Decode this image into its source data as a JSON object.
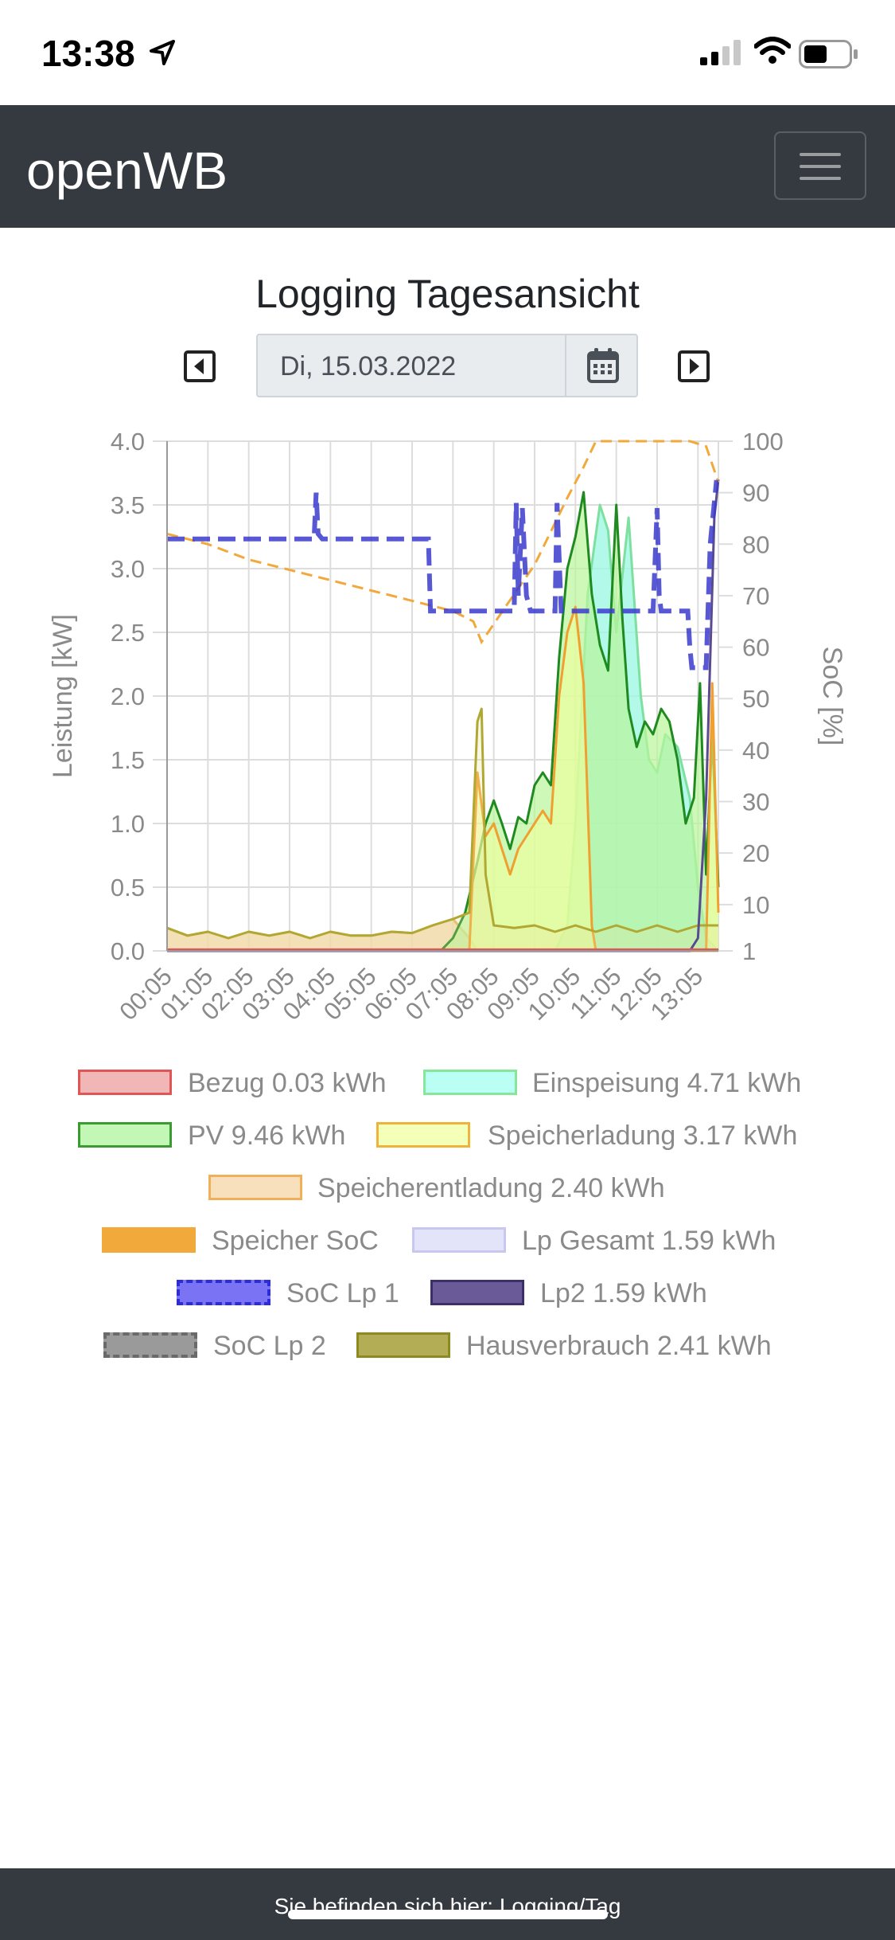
{
  "status_bar": {
    "time": "13:38"
  },
  "navbar": {
    "brand": "openWB"
  },
  "page": {
    "title": "Logging Tagesansicht",
    "date": "Di, 15.03.2022"
  },
  "chart_data": {
    "type": "area",
    "title": "",
    "ylabel": "Leistung [kW]",
    "y2label": "SoC [%]",
    "ylim": [
      0,
      4
    ],
    "y2lim": [
      1,
      100
    ],
    "yticks": [
      "0.0",
      "0.5",
      "1.0",
      "1.5",
      "2.0",
      "2.5",
      "3.0",
      "3.5",
      "4.0"
    ],
    "y2ticks": [
      "1",
      "10",
      "20",
      "30",
      "40",
      "50",
      "60",
      "70",
      "80",
      "90",
      "100"
    ],
    "x": [
      "00:05",
      "01:05",
      "02:05",
      "03:05",
      "04:05",
      "05:05",
      "06:05",
      "07:05",
      "08:05",
      "09:05",
      "10:05",
      "11:05",
      "12:05",
      "13:05"
    ],
    "series": [
      {
        "name": "Bezug 0.03 kWh",
        "axis": "left",
        "x": [
          0,
          13.5
        ],
        "values": [
          0.01,
          0.01
        ]
      },
      {
        "name": "Einspeisung 4.71 kWh",
        "axis": "left",
        "x": [
          0,
          7.4,
          7.6,
          8.0,
          8.5,
          9.0,
          9.5,
          9.8,
          10.0,
          10.3,
          10.6,
          10.8,
          11.0,
          11.3,
          11.6,
          11.8,
          12.0,
          12.2,
          12.5,
          12.8,
          13.0,
          13.2,
          13.5
        ],
        "values": [
          0,
          0,
          0,
          0,
          0,
          0,
          0,
          0.2,
          1.0,
          2.8,
          3.5,
          3.3,
          2.5,
          3.4,
          2.0,
          1.5,
          1.4,
          1.7,
          1.6,
          1.2,
          0.5,
          0.1,
          0
        ]
      },
      {
        "name": "PV 9.46 kWh",
        "axis": "left",
        "x": [
          0,
          6.7,
          7.0,
          7.3,
          7.6,
          7.8,
          8.0,
          8.2,
          8.4,
          8.6,
          8.8,
          9.0,
          9.2,
          9.4,
          9.6,
          9.8,
          10.0,
          10.2,
          10.4,
          10.6,
          10.8,
          11.0,
          11.15,
          11.3,
          11.5,
          11.7,
          11.9,
          12.1,
          12.3,
          12.5,
          12.7,
          12.9,
          13.05,
          13.2,
          13.35,
          13.5
        ],
        "values": [
          0,
          0,
          0.1,
          0.3,
          0.7,
          1.0,
          1.18,
          1.0,
          0.8,
          1.05,
          1.0,
          1.3,
          1.4,
          1.3,
          2.3,
          3.0,
          3.25,
          3.6,
          2.8,
          2.4,
          2.2,
          3.5,
          2.6,
          1.9,
          1.6,
          1.8,
          1.7,
          1.9,
          1.8,
          1.5,
          1.0,
          1.2,
          2.1,
          0.6,
          1.7,
          0.5
        ]
      },
      {
        "name": "Speicherladung 3.17 kWh",
        "axis": "left",
        "x": [
          0,
          7.4,
          7.6,
          7.8,
          8.0,
          8.2,
          8.4,
          8.6,
          8.8,
          9.0,
          9.2,
          9.4,
          9.6,
          9.8,
          10.0,
          10.2,
          10.4,
          10.5,
          13.2,
          13.35,
          13.5
        ],
        "values": [
          0,
          0,
          1.4,
          0.9,
          1.0,
          0.8,
          0.6,
          0.8,
          0.9,
          1.0,
          1.1,
          1.0,
          2.0,
          2.5,
          2.7,
          2.1,
          0.2,
          0,
          0,
          2.1,
          0.3
        ]
      },
      {
        "name": "Speicherentladung 2.40 kWh",
        "axis": "left",
        "x": [
          0,
          0.5,
          1.0,
          1.5,
          2.0,
          2.5,
          3.0,
          3.5,
          4.0,
          4.5,
          5.0,
          5.5,
          6.0,
          6.5,
          7.0,
          7.4,
          7.6,
          13.3,
          13.5
        ],
        "values": [
          0.18,
          0.12,
          0.15,
          0.1,
          0.15,
          0.12,
          0.15,
          0.1,
          0.15,
          0.12,
          0.12,
          0.15,
          0.14,
          0.2,
          0.25,
          0.1,
          0,
          0,
          0
        ]
      },
      {
        "name": "Speicher SoC",
        "axis": "right",
        "x": [
          0,
          1,
          2,
          3,
          4,
          5,
          6,
          6.5,
          7,
          7.5,
          7.7,
          8.3,
          9.0,
          9.8,
          10.2,
          10.5,
          11,
          12,
          12.8,
          13.2,
          13.5
        ],
        "values": [
          82,
          80,
          77,
          75,
          73,
          71,
          69,
          68,
          67,
          65,
          61,
          68,
          76,
          89,
          95,
          100,
          100,
          100,
          100,
          99,
          92
        ]
      },
      {
        "name": "Lp Gesamt 1.59 kWh",
        "axis": "left",
        "x": [
          0,
          12.8,
          13.0,
          13.2,
          13.4,
          13.5
        ],
        "values": [
          0,
          0,
          0.1,
          1.2,
          3.4,
          3.7
        ]
      },
      {
        "name": "SoC Lp 1",
        "axis": "right",
        "x": [
          0,
          3.6,
          3.65,
          3.7,
          3.8,
          6.4,
          6.45,
          8.5,
          8.55,
          8.6,
          8.7,
          8.8,
          8.9,
          9.5,
          9.55,
          9.65,
          11.9,
          12.0,
          12.05,
          12.1,
          12.75,
          12.8,
          12.85,
          13.2,
          13.3,
          13.45,
          13.5
        ],
        "values": [
          81,
          81,
          90,
          82,
          81,
          81,
          67,
          67,
          88,
          70,
          87,
          70,
          67,
          67,
          88,
          67,
          67,
          87,
          70,
          67,
          67,
          60,
          56,
          56,
          80,
          92,
          92
        ]
      },
      {
        "name": "Lp2 1.59 kWh",
        "axis": "left",
        "x": [
          0,
          12.8,
          13.0,
          13.2,
          13.4,
          13.5
        ],
        "values": [
          0,
          0,
          0.1,
          1.2,
          3.4,
          3.7
        ]
      },
      {
        "name": "SoC Lp 2",
        "axis": "right",
        "x": [],
        "values": []
      },
      {
        "name": "Hausverbrauch 2.41 kWh",
        "axis": "left",
        "x": [
          0,
          0.5,
          1.0,
          1.5,
          2.0,
          2.5,
          3.0,
          3.5,
          4.0,
          4.5,
          5.0,
          5.5,
          6.0,
          6.5,
          7.0,
          7.4,
          7.6,
          7.7,
          7.8,
          8.0,
          8.5,
          9.0,
          9.5,
          10.0,
          10.5,
          11.0,
          11.5,
          12.0,
          12.5,
          13.0,
          13.5
        ],
        "values": [
          0.18,
          0.12,
          0.15,
          0.1,
          0.15,
          0.12,
          0.15,
          0.1,
          0.15,
          0.12,
          0.12,
          0.15,
          0.14,
          0.2,
          0.25,
          0.3,
          1.8,
          1.9,
          0.6,
          0.2,
          0.18,
          0.2,
          0.15,
          0.2,
          0.15,
          0.2,
          0.15,
          0.2,
          0.15,
          0.2,
          0.2
        ]
      }
    ],
    "legend_position": "bottom",
    "grid": true
  },
  "legend": [
    {
      "label": "Bezug 0.03 kWh",
      "fill": "#f1b6b6",
      "stroke": "#e25555",
      "dash": false
    },
    {
      "label": "Einspeisung 4.71 kWh",
      "fill": "#b9fff4",
      "stroke": "#86e69a",
      "dash": false
    },
    {
      "label": "PV 9.46 kWh",
      "fill": "#c2f7b6",
      "stroke": "#3a9c30",
      "dash": false
    },
    {
      "label": "Speicherladung 3.17 kWh",
      "fill": "#f4ffb8",
      "stroke": "#f0b33a",
      "dash": false
    },
    {
      "label": "Speicherentladung 2.40 kWh",
      "fill": "#f8e0bd",
      "stroke": "#f0b05a",
      "dash": false
    },
    {
      "label": "Speicher SoC",
      "fill": "#f2a93b",
      "stroke": "#f2a93b",
      "dash": true
    },
    {
      "label": "Lp Gesamt 1.59 kWh",
      "fill": "#e3e3fa",
      "stroke": "#c7c7ef",
      "dash": false
    },
    {
      "label": "SoC Lp 1",
      "fill": "#7a73f4",
      "stroke": "#2c2cd8",
      "dash": true
    },
    {
      "label": "Lp2 1.59 kWh",
      "fill": "#6a5b98",
      "stroke": "#3c2f6c",
      "dash": false
    },
    {
      "label": "SoC Lp 2",
      "fill": "#9a9a9a",
      "stroke": "#6a6a6a",
      "dash": true
    },
    {
      "label": "Hausverbrauch 2.41 kWh",
      "fill": "#b3ad55",
      "stroke": "#8d8a1f",
      "dash": false
    }
  ],
  "colors": {
    "grid": "#dddddd",
    "axis_text": "#8a8a8a",
    "bezug": "#e25555",
    "einspeisung": "#9ff8e4",
    "pv": "#1f8a1f",
    "pv_fill": "#b9f59a",
    "speicherladung": "#f0a030",
    "speicherentladung": "#f5d7ae",
    "speicher_soc": "#f2a93b",
    "lp_gesamt": "#5a4a90",
    "soc_lp1": "#3b3bcc",
    "hausverbrauch": "#b0a832"
  },
  "footer": {
    "text": "Sie befinden sich hier: Logging/Tag"
  }
}
